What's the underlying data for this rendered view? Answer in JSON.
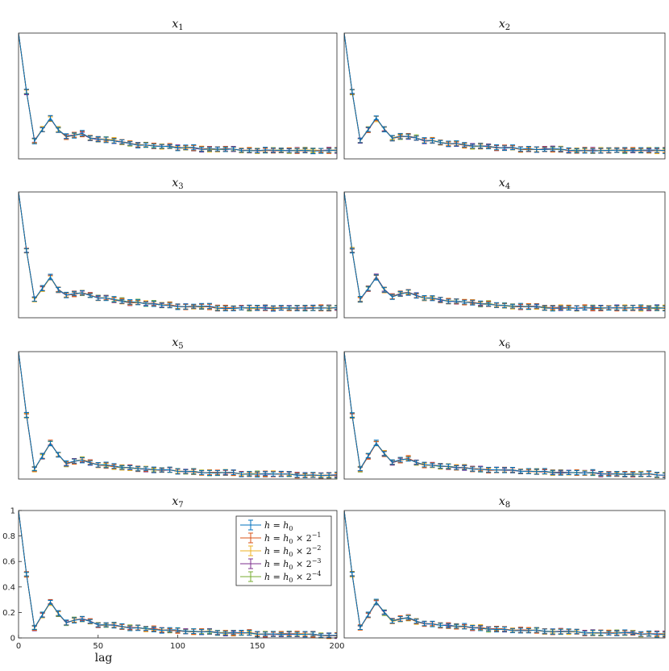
{
  "chart_data": {
    "type": "line",
    "error_bars": true,
    "xlabel": "lag",
    "xlim": [
      0,
      200
    ],
    "ylim": [
      0,
      1
    ],
    "xticks": [
      "0",
      "50",
      "100",
      "150",
      "200"
    ],
    "yticks": [
      "0",
      "0.2",
      "0.4",
      "0.6",
      "0.8",
      "1"
    ],
    "grid": false,
    "legend_position": "top-right of panel x7",
    "x": [
      0,
      5,
      10,
      15,
      20,
      25,
      30,
      35,
      40,
      45,
      50,
      55,
      60,
      65,
      70,
      75,
      80,
      85,
      90,
      95,
      100,
      105,
      110,
      115,
      120,
      125,
      130,
      135,
      140,
      145,
      150,
      155,
      160,
      165,
      170,
      175,
      180,
      185,
      190,
      195,
      200
    ],
    "series_styles": [
      {
        "label": "h = h₀",
        "color": "#0072BD"
      },
      {
        "label": "h = h₀ × 2⁻¹",
        "color": "#D95319"
      },
      {
        "label": "h = h₀ × 2⁻²",
        "color": "#EDB120"
      },
      {
        "label": "h = h₀ × 2⁻³",
        "color": "#7E2F8E"
      },
      {
        "label": "h = h₀ × 2⁻⁴",
        "color": "#77AC30"
      }
    ],
    "panels": [
      {
        "var": "x",
        "sub": "1",
        "show_axes_labels": false,
        "y": [
          1.0,
          0.58,
          0.23,
          0.31,
          0.39,
          0.31,
          0.26,
          0.27,
          0.28,
          0.25,
          0.24,
          0.24,
          0.23,
          0.22,
          0.21,
          0.2,
          0.2,
          0.19,
          0.19,
          0.19,
          0.18,
          0.18,
          0.18,
          0.17,
          0.17,
          0.17,
          0.17,
          0.17,
          0.16,
          0.16,
          0.16,
          0.16,
          0.16,
          0.16,
          0.16,
          0.16,
          0.16,
          0.16,
          0.16,
          0.16,
          0.16
        ]
      },
      {
        "var": "x",
        "sub": "2",
        "show_axes_labels": false,
        "y": [
          1.0,
          0.58,
          0.23,
          0.31,
          0.39,
          0.31,
          0.25,
          0.26,
          0.26,
          0.25,
          0.23,
          0.23,
          0.22,
          0.21,
          0.21,
          0.2,
          0.19,
          0.19,
          0.19,
          0.18,
          0.18,
          0.18,
          0.17,
          0.17,
          0.17,
          0.17,
          0.17,
          0.17,
          0.16,
          0.16,
          0.16,
          0.16,
          0.16,
          0.16,
          0.16,
          0.16,
          0.16,
          0.16,
          0.16,
          0.16,
          0.16
        ]
      },
      {
        "var": "x",
        "sub": "3",
        "show_axes_labels": false,
        "y": [
          1.0,
          0.58,
          0.23,
          0.31,
          0.39,
          0.3,
          0.26,
          0.27,
          0.28,
          0.26,
          0.24,
          0.24,
          0.23,
          0.22,
          0.21,
          0.21,
          0.2,
          0.2,
          0.19,
          0.19,
          0.18,
          0.18,
          0.18,
          0.18,
          0.18,
          0.17,
          0.17,
          0.17,
          0.17,
          0.17,
          0.17,
          0.17,
          0.17,
          0.17,
          0.17,
          0.17,
          0.17,
          0.17,
          0.17,
          0.17,
          0.17
        ]
      },
      {
        "var": "x",
        "sub": "4",
        "show_axes_labels": false,
        "y": [
          1.0,
          0.58,
          0.23,
          0.31,
          0.39,
          0.3,
          0.25,
          0.27,
          0.28,
          0.26,
          0.24,
          0.24,
          0.23,
          0.22,
          0.22,
          0.21,
          0.21,
          0.2,
          0.2,
          0.19,
          0.19,
          0.18,
          0.18,
          0.18,
          0.18,
          0.17,
          0.17,
          0.17,
          0.17,
          0.17,
          0.17,
          0.17,
          0.17,
          0.17,
          0.17,
          0.17,
          0.17,
          0.17,
          0.17,
          0.17,
          0.17
        ]
      },
      {
        "var": "x",
        "sub": "5",
        "show_axes_labels": false,
        "y": [
          1.0,
          0.5,
          0.08,
          0.18,
          0.28,
          0.19,
          0.12,
          0.14,
          0.15,
          0.13,
          0.11,
          0.11,
          0.1,
          0.09,
          0.09,
          0.08,
          0.08,
          0.07,
          0.07,
          0.07,
          0.06,
          0.06,
          0.06,
          0.05,
          0.05,
          0.05,
          0.05,
          0.05,
          0.04,
          0.04,
          0.04,
          0.04,
          0.04,
          0.04,
          0.04,
          0.03,
          0.03,
          0.03,
          0.03,
          0.03,
          0.03
        ]
      },
      {
        "var": "x",
        "sub": "6",
        "show_axes_labels": false,
        "y": [
          1.0,
          0.5,
          0.08,
          0.18,
          0.28,
          0.2,
          0.13,
          0.15,
          0.16,
          0.13,
          0.11,
          0.11,
          0.1,
          0.1,
          0.09,
          0.09,
          0.08,
          0.08,
          0.07,
          0.07,
          0.07,
          0.07,
          0.06,
          0.06,
          0.06,
          0.06,
          0.05,
          0.05,
          0.05,
          0.05,
          0.05,
          0.05,
          0.04,
          0.04,
          0.04,
          0.04,
          0.04,
          0.04,
          0.04,
          0.03,
          0.03
        ]
      },
      {
        "var": "x",
        "sub": "7",
        "show_axes_labels": true,
        "y": [
          1.0,
          0.5,
          0.08,
          0.18,
          0.28,
          0.19,
          0.12,
          0.14,
          0.15,
          0.13,
          0.1,
          0.1,
          0.1,
          0.09,
          0.08,
          0.08,
          0.07,
          0.07,
          0.06,
          0.06,
          0.06,
          0.05,
          0.05,
          0.05,
          0.05,
          0.04,
          0.04,
          0.04,
          0.04,
          0.04,
          0.03,
          0.03,
          0.03,
          0.03,
          0.03,
          0.03,
          0.03,
          0.03,
          0.02,
          0.02,
          0.02
        ]
      },
      {
        "var": "x",
        "sub": "8",
        "show_axes_labels": false,
        "y": [
          1.0,
          0.5,
          0.08,
          0.18,
          0.28,
          0.2,
          0.13,
          0.15,
          0.16,
          0.13,
          0.11,
          0.11,
          0.1,
          0.1,
          0.09,
          0.09,
          0.08,
          0.08,
          0.07,
          0.07,
          0.07,
          0.06,
          0.06,
          0.06,
          0.06,
          0.05,
          0.05,
          0.05,
          0.05,
          0.05,
          0.04,
          0.04,
          0.04,
          0.04,
          0.04,
          0.04,
          0.04,
          0.03,
          0.03,
          0.03,
          0.03
        ]
      }
    ]
  },
  "legend": {
    "entries": [
      {
        "pre": "h = h",
        "sub": "0",
        "post": "",
        "sup": ""
      },
      {
        "pre": "h = h",
        "sub": "0",
        "post": " × 2",
        "sup": "−1"
      },
      {
        "pre": "h = h",
        "sub": "0",
        "post": " × 2",
        "sup": "−2"
      },
      {
        "pre": "h = h",
        "sub": "0",
        "post": " × 2",
        "sup": "−3"
      },
      {
        "pre": "h = h",
        "sub": "0",
        "post": " × 2",
        "sup": "−4"
      }
    ]
  }
}
